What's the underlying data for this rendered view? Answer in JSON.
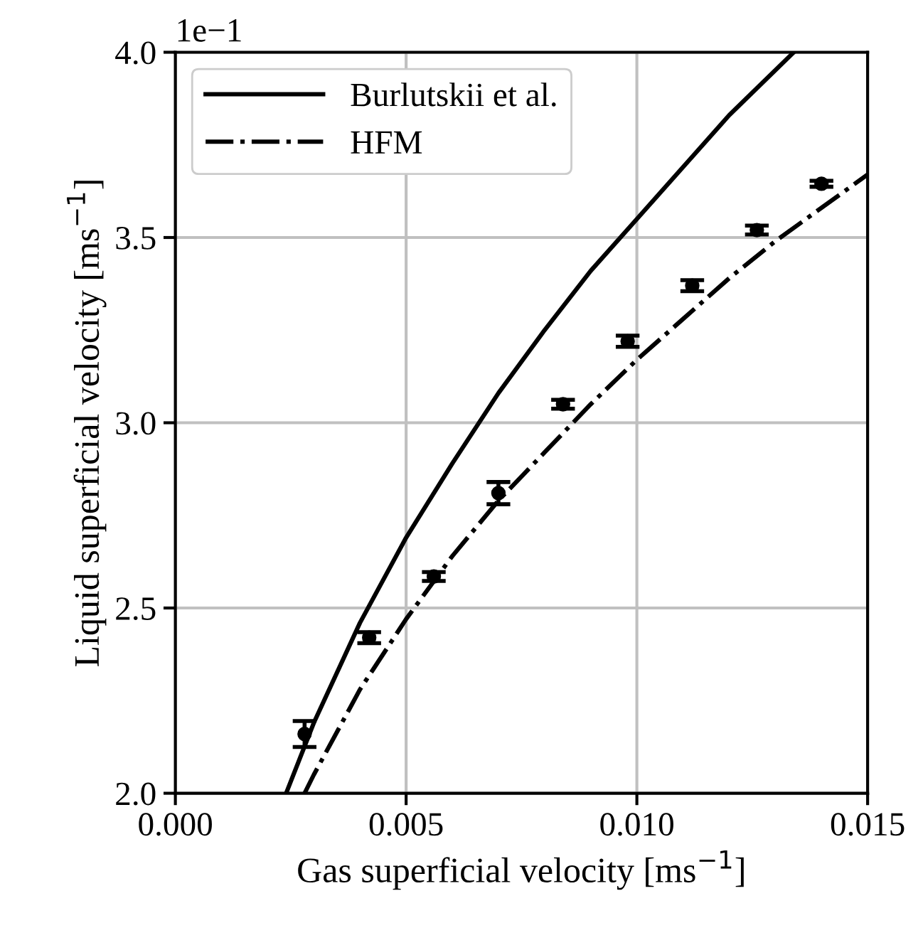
{
  "chart_data": {
    "type": "line",
    "xlabel": "Gas superficial velocity [ms$^{−1}$]",
    "ylabel": "Liquid superficial velocity [ms$^{−1}$]",
    "annotations": [
      "1e−1"
    ],
    "xlim": [
      0.0,
      0.015
    ],
    "xticks": [
      {
        "value": 0.0,
        "label": "0.000"
      },
      {
        "value": 0.005,
        "label": "0.005"
      },
      {
        "value": 0.01,
        "label": "0.010"
      },
      {
        "value": 0.015,
        "label": "0.015"
      }
    ],
    "ylim": [
      2.0,
      4.0
    ],
    "yticks": [
      {
        "value": 2.0,
        "label": "2.0"
      },
      {
        "value": 2.5,
        "label": "2.5"
      },
      {
        "value": 3.0,
        "label": "3.0"
      },
      {
        "value": 3.5,
        "label": "3.5"
      },
      {
        "value": 4.0,
        "label": "4.0"
      }
    ],
    "grid": true,
    "legend": "top left",
    "series": [
      {
        "name": "Burlutskii et al.",
        "color": "#000000",
        "line_style": "solid",
        "marker": "none",
        "x": [
          0.0024,
          0.003,
          0.004,
          0.005,
          0.006,
          0.007,
          0.008,
          0.009,
          0.01,
          0.011,
          0.012,
          0.0134
        ],
        "values": [
          2.0,
          2.19,
          2.46,
          2.69,
          2.89,
          3.08,
          3.25,
          3.41,
          3.55,
          3.69,
          3.83,
          4.0
        ]
      },
      {
        "name": "HFM",
        "color": "#000000",
        "line_style": "dashdot",
        "marker": "none",
        "x": [
          0.0028,
          0.003,
          0.004,
          0.005,
          0.006,
          0.007,
          0.008,
          0.009,
          0.01,
          0.011,
          0.012,
          0.013,
          0.014,
          0.015
        ],
        "values": [
          2.0,
          2.05,
          2.28,
          2.47,
          2.64,
          2.79,
          2.92,
          3.05,
          3.17,
          3.28,
          3.39,
          3.49,
          3.58,
          3.67
        ]
      },
      {
        "type": "scatter",
        "color": "#000000",
        "marker": "circle",
        "x": [
          0.0028,
          0.0042,
          0.0056,
          0.007,
          0.0084,
          0.0098,
          0.0112,
          0.0126,
          0.014
        ],
        "values": [
          2.16,
          2.42,
          2.585,
          2.81,
          3.05,
          3.22,
          3.37,
          3.52,
          3.645
        ],
        "errors": [
          0.035,
          0.015,
          0.012,
          0.03,
          0.012,
          0.015,
          0.015,
          0.012,
          0.008
        ]
      }
    ]
  }
}
